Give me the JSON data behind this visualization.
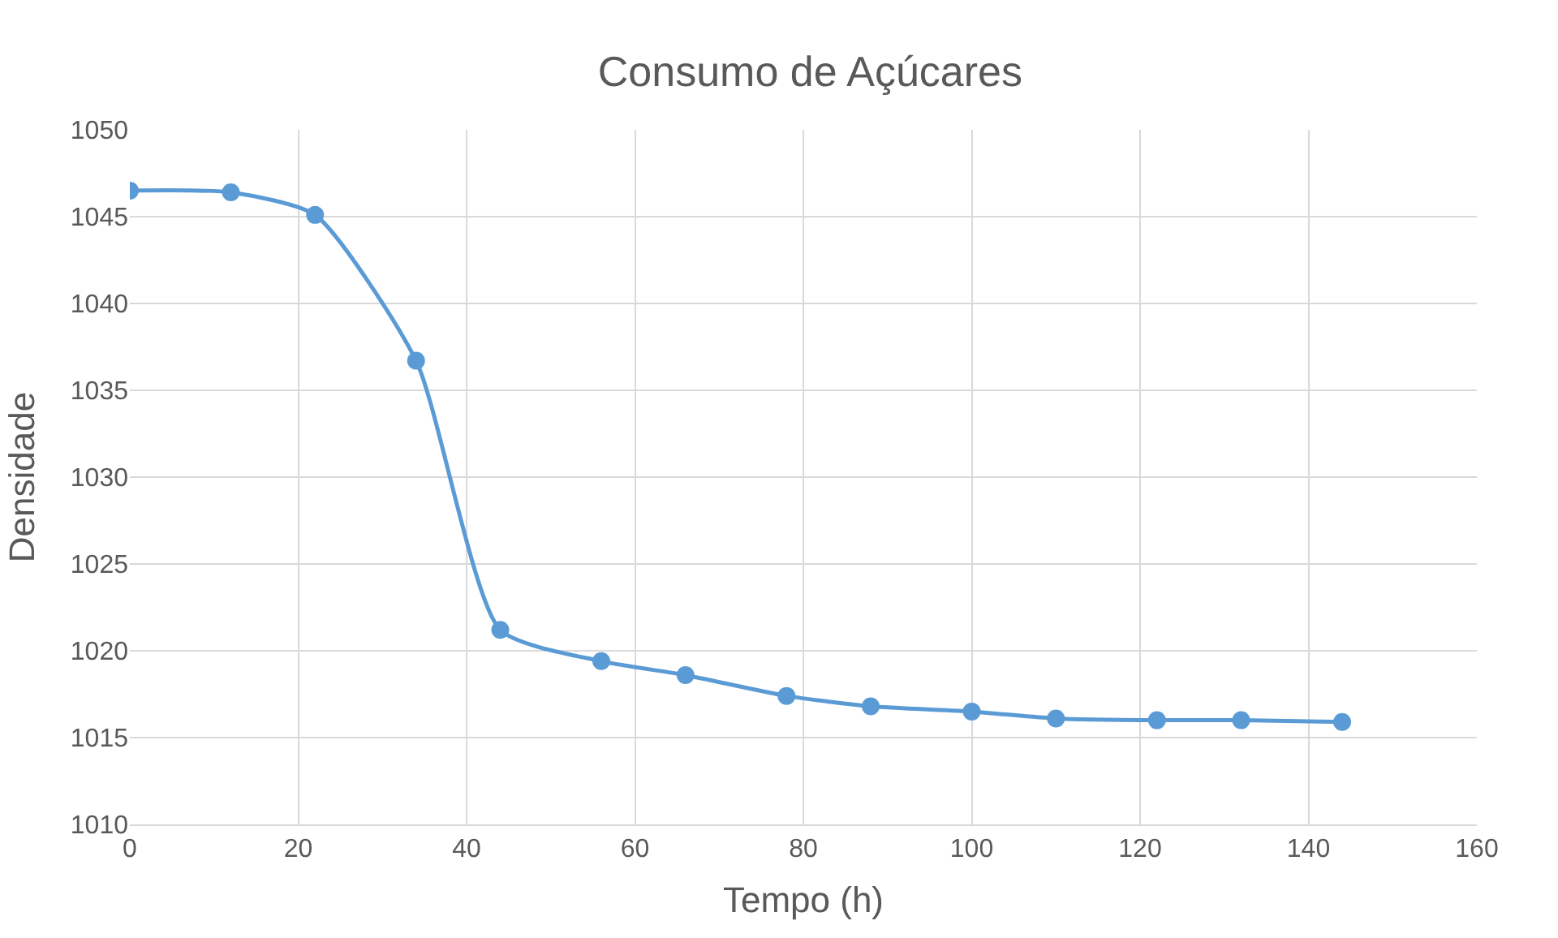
{
  "chart_data": {
    "type": "line",
    "title": "Consumo de Açúcares",
    "xlabel": "Tempo (h)",
    "ylabel": "Densidade",
    "x": [
      0,
      12,
      22,
      34,
      44,
      56,
      66,
      78,
      88,
      100,
      110,
      122,
      132,
      144
    ],
    "series": [
      {
        "color": "#5b9bd5",
        "values": [
          1046.5,
          1046.4,
          1045.1,
          1036.7,
          1021.2,
          1019.4,
          1018.6,
          1017.4,
          1016.8,
          1016.5,
          1016.1,
          1016.0,
          1016.0,
          1015.9
        ]
      }
    ],
    "xlim": [
      0,
      160
    ],
    "xticks": [
      0,
      20,
      40,
      60,
      80,
      100,
      120,
      140,
      160
    ],
    "ylim": [
      1010,
      1050
    ],
    "yticks": [
      1010,
      1015,
      1020,
      1025,
      1030,
      1035,
      1040,
      1045,
      1050
    ],
    "grid": true,
    "marker": "circle",
    "line_style": "solid"
  }
}
